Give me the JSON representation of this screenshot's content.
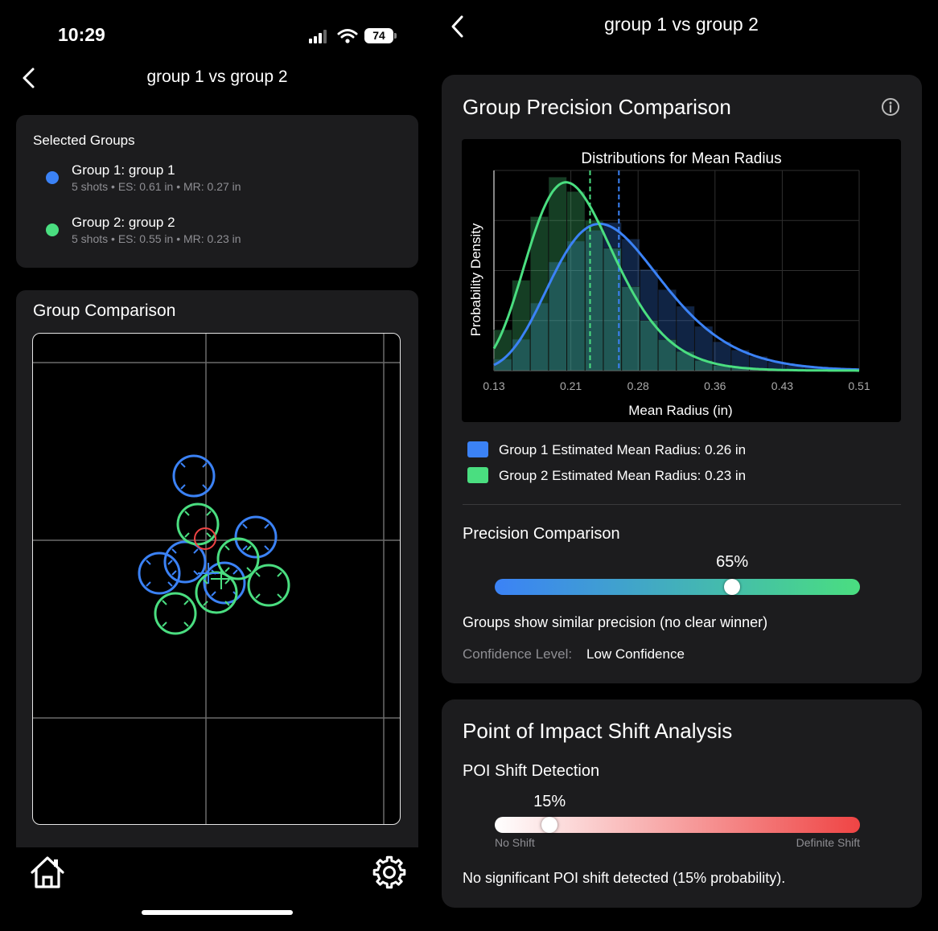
{
  "status_bar": {
    "time": "10:29",
    "battery": "74"
  },
  "left": {
    "nav_title": "group 1 vs group 2",
    "selected_groups": {
      "label": "Selected Groups",
      "groups": [
        {
          "name": "Group 1: group 1",
          "meta": "5 shots • ES: 0.61 in • MR: 0.27 in",
          "color": "#3b82f6"
        },
        {
          "name": "Group 2: group 2",
          "meta": "5 shots • ES: 0.55 in • MR: 0.23 in",
          "color": "#4ade80"
        }
      ]
    },
    "comparison": {
      "title": "Group Comparison"
    },
    "tab_bar": {
      "home_icon": "home-icon",
      "settings_icon": "gear-icon"
    }
  },
  "right": {
    "nav_title": "group 1 vs group 2",
    "precision_card": {
      "title": "Group Precision Comparison",
      "info_icon": "info-icon",
      "chart_data": {
        "type": "histogram-density",
        "title": "Distributions for Mean Radius",
        "xlabel": "Mean Radius (in)",
        "ylabel": "Probability Density",
        "x_ticks": [
          "0.13",
          "0.21",
          "0.28",
          "0.36",
          "0.43",
          "0.51"
        ],
        "xlim": [
          0.13,
          0.51
        ],
        "grid": true,
        "series": [
          {
            "estimate": 0.26,
            "color": "#3b82f6"
          },
          {
            "estimate": 0.23,
            "color": "#4ade80"
          }
        ]
      },
      "legend": [
        {
          "label": "Group 1 Estimated Mean Radius: 0.26 in",
          "color": "#3b82f6"
        },
        {
          "label": "Group 2 Estimated Mean Radius: 0.23 in",
          "color": "#4ade80"
        }
      ],
      "precision": {
        "title": "Precision Comparison",
        "value_label": "65%",
        "value": 0.65,
        "summary": "Groups show similar precision (no clear winner)",
        "confidence_label": "Confidence Level:",
        "confidence_value": "Low Confidence"
      }
    },
    "poi_card": {
      "title": "Point of Impact Shift Analysis",
      "detection_title": "POI Shift Detection",
      "value_label": "15%",
      "value": 0.15,
      "min_label": "No Shift",
      "max_label": "Definite Shift",
      "summary": "No significant POI shift detected (15% probability)."
    }
  }
}
